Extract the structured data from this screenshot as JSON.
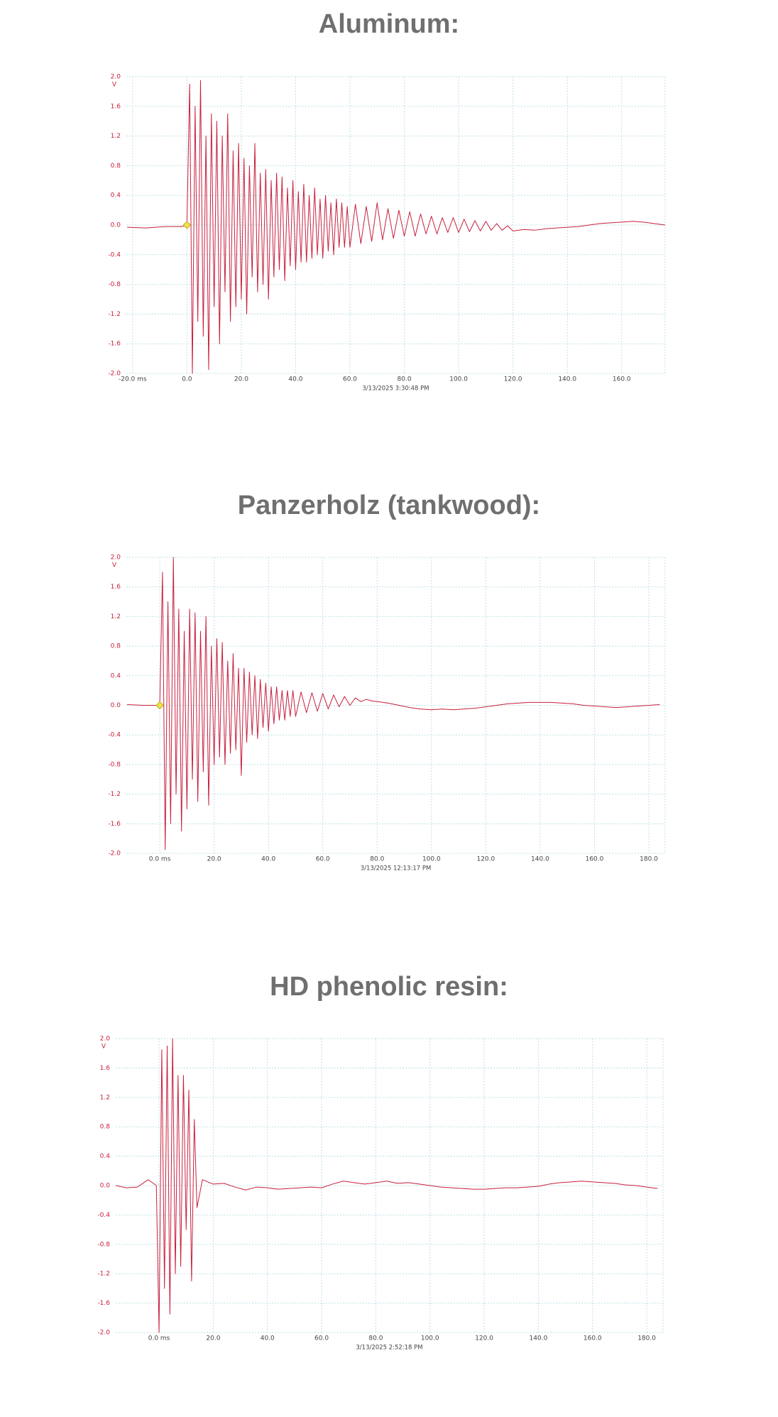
{
  "chart_data": [
    {
      "type": "line",
      "title": "Aluminum:",
      "y_unit": "V",
      "x_label": "3/13/2025 3:30:48 PM",
      "color": "#c8203c",
      "grid": true,
      "xlim": [
        -22.3,
        176
      ],
      "ylim": [
        -2,
        2
      ],
      "xticks": [
        {
          "value": -20,
          "label": "-20.0 ms"
        },
        {
          "value": 0,
          "label": "0.0"
        },
        {
          "value": 20,
          "label": "20.0"
        },
        {
          "value": 40,
          "label": "40.0"
        },
        {
          "value": 60,
          "label": "60.0"
        },
        {
          "value": 80,
          "label": "80.0"
        },
        {
          "value": 100,
          "label": "100.0"
        },
        {
          "value": 120,
          "label": "120.0"
        },
        {
          "value": 140,
          "label": "140.0"
        },
        {
          "value": 160,
          "label": "160.0"
        }
      ],
      "yticks": [
        {
          "value": 2,
          "label": "2.0"
        },
        {
          "value": 1.6,
          "label": "1.6"
        },
        {
          "value": 1.2,
          "label": "1.2"
        },
        {
          "value": 0.8,
          "label": "0.8"
        },
        {
          "value": 0.4,
          "label": "0.4"
        },
        {
          "value": 0,
          "label": "0.0"
        },
        {
          "value": -0.4,
          "label": "-0.4"
        },
        {
          "value": -0.8,
          "label": "-0.8"
        },
        {
          "value": -1.2,
          "label": "-1.2"
        },
        {
          "value": -1.6,
          "label": "-1.6"
        },
        {
          "value": -2,
          "label": "-2.0"
        }
      ],
      "trigger": {
        "x": 0,
        "y": 0
      },
      "x": [
        -22,
        -15,
        -8,
        -2,
        0,
        1,
        2,
        3,
        4,
        5,
        6,
        7,
        8,
        9,
        10,
        11,
        12,
        13,
        14,
        15,
        16,
        17,
        18,
        19,
        20,
        21,
        22,
        23,
        24,
        25,
        26,
        27,
        28,
        29,
        30,
        31,
        32,
        33,
        34,
        35,
        36,
        37,
        38,
        39,
        40,
        41,
        42,
        43,
        44,
        45,
        46,
        47,
        48,
        49,
        50,
        51,
        52,
        53,
        54,
        55,
        56,
        57,
        58,
        59,
        60,
        62,
        64,
        66,
        68,
        70,
        72,
        74,
        76,
        78,
        80,
        82,
        84,
        86,
        88,
        90,
        92,
        94,
        96,
        98,
        100,
        102,
        104,
        106,
        108,
        110,
        112,
        114,
        116,
        118,
        120,
        124,
        128,
        132,
        136,
        140,
        144,
        148,
        152,
        156,
        160,
        164,
        168,
        172,
        176
      ],
      "values": [
        -0.03,
        -0.04,
        -0.02,
        -0.02,
        0.0,
        1.9,
        -2.0,
        1.6,
        -1.3,
        1.95,
        -1.5,
        1.2,
        -1.95,
        1.5,
        -1.1,
        1.4,
        -1.6,
        1.2,
        -0.9,
        1.5,
        -1.3,
        1.0,
        -1.1,
        1.1,
        -1.0,
        0.9,
        -1.2,
        0.8,
        -0.7,
        1.1,
        -0.9,
        0.7,
        -0.8,
        0.75,
        -1.0,
        0.6,
        -0.7,
        0.7,
        -0.6,
        0.65,
        -0.75,
        0.5,
        -0.55,
        0.6,
        -0.6,
        0.45,
        -0.5,
        0.55,
        -0.5,
        0.4,
        -0.45,
        0.5,
        -0.4,
        0.35,
        -0.45,
        0.4,
        -0.35,
        0.3,
        -0.4,
        0.35,
        -0.3,
        0.3,
        -0.3,
        0.25,
        -0.3,
        0.28,
        -0.25,
        0.25,
        -0.22,
        0.3,
        -0.2,
        0.22,
        -0.18,
        0.2,
        -0.15,
        0.18,
        -0.15,
        0.15,
        -0.12,
        0.12,
        -0.12,
        0.1,
        -0.1,
        0.1,
        -0.1,
        0.08,
        -0.09,
        0.06,
        -0.08,
        0.05,
        -0.07,
        0.02,
        -0.07,
        -0.01,
        -0.08,
        -0.06,
        -0.07,
        -0.05,
        -0.04,
        -0.03,
        -0.02,
        0.0,
        0.02,
        0.03,
        0.04,
        0.05,
        0.04,
        0.02,
        0.0
      ]
    },
    {
      "type": "line",
      "title": "Panzerholz (tankwood):",
      "y_unit": "V",
      "x_label": "3/13/2025 12:13:17 PM",
      "color": "#c8203c",
      "grid": true,
      "xlim": [
        -12.3,
        186
      ],
      "ylim": [
        -2,
        2
      ],
      "xticks": [
        {
          "value": 0,
          "label": "0.0 ms"
        },
        {
          "value": 20,
          "label": "20.0"
        },
        {
          "value": 40,
          "label": "40.0"
        },
        {
          "value": 60,
          "label": "60.0"
        },
        {
          "value": 80,
          "label": "80.0"
        },
        {
          "value": 100,
          "label": "100.0"
        },
        {
          "value": 120,
          "label": "120.0"
        },
        {
          "value": 140,
          "label": "140.0"
        },
        {
          "value": 160,
          "label": "160.0"
        },
        {
          "value": 180,
          "label": "180.0"
        }
      ],
      "yticks": [
        {
          "value": 2,
          "label": "2.0"
        },
        {
          "value": 1.6,
          "label": "1.6"
        },
        {
          "value": 1.2,
          "label": "1.2"
        },
        {
          "value": 0.8,
          "label": "0.8"
        },
        {
          "value": 0.4,
          "label": "0.4"
        },
        {
          "value": 0,
          "label": "0.0"
        },
        {
          "value": -0.4,
          "label": "-0.4"
        },
        {
          "value": -0.8,
          "label": "-0.8"
        },
        {
          "value": -1.2,
          "label": "-1.2"
        },
        {
          "value": -1.6,
          "label": "-1.6"
        },
        {
          "value": -2,
          "label": "-2.0"
        }
      ],
      "trigger": {
        "x": 0,
        "y": 0
      },
      "x": [
        -12,
        -6,
        -2,
        0,
        1,
        2,
        3,
        4,
        5,
        6,
        7,
        8,
        9,
        10,
        11,
        12,
        13,
        14,
        15,
        16,
        17,
        18,
        19,
        20,
        21,
        22,
        23,
        24,
        25,
        26,
        27,
        28,
        29,
        30,
        31,
        32,
        33,
        34,
        35,
        36,
        37,
        38,
        39,
        40,
        41,
        42,
        43,
        44,
        45,
        46,
        47,
        48,
        49,
        50,
        52,
        54,
        56,
        58,
        60,
        62,
        64,
        66,
        68,
        70,
        72,
        74,
        76,
        78,
        80,
        84,
        88,
        92,
        96,
        100,
        104,
        108,
        112,
        116,
        120,
        124,
        128,
        132,
        136,
        140,
        144,
        148,
        152,
        156,
        160,
        164,
        168,
        172,
        176,
        180,
        184
      ],
      "values": [
        0.01,
        0.0,
        0.0,
        0.0,
        1.8,
        -1.95,
        1.4,
        -1.6,
        2.0,
        -1.2,
        1.3,
        -1.7,
        1.0,
        -1.4,
        1.3,
        -1.0,
        1.25,
        -1.3,
        1.0,
        -0.9,
        1.2,
        -1.35,
        0.8,
        -0.8,
        0.9,
        -0.7,
        0.85,
        -0.8,
        0.6,
        -0.65,
        0.7,
        -0.6,
        0.5,
        -0.95,
        0.5,
        -0.5,
        0.45,
        -0.4,
        0.4,
        -0.45,
        0.35,
        -0.3,
        0.3,
        -0.35,
        0.25,
        -0.25,
        0.25,
        -0.2,
        0.2,
        -0.2,
        0.2,
        -0.15,
        0.2,
        -0.15,
        0.18,
        -0.1,
        0.17,
        -0.08,
        0.16,
        -0.05,
        0.14,
        -0.02,
        0.12,
        0.0,
        0.1,
        0.05,
        0.08,
        0.06,
        0.05,
        0.03,
        0.0,
        -0.03,
        -0.05,
        -0.06,
        -0.05,
        -0.06,
        -0.05,
        -0.04,
        -0.02,
        0.0,
        0.02,
        0.03,
        0.04,
        0.04,
        0.04,
        0.03,
        0.02,
        0.0,
        -0.01,
        -0.02,
        -0.03,
        -0.02,
        -0.01,
        0.0,
        0.01
      ]
    },
    {
      "type": "line",
      "title": "HD phenolic resin:",
      "y_unit": "V",
      "x_label": "3/13/2025 2:52:18 PM",
      "color": "#c8203c",
      "grid": true,
      "xlim": [
        -16,
        186
      ],
      "ylim": [
        -2,
        2
      ],
      "xticks": [
        {
          "value": 0,
          "label": "0.0 ms"
        },
        {
          "value": 20,
          "label": "20.0"
        },
        {
          "value": 40,
          "label": "40.0"
        },
        {
          "value": 60,
          "label": "60.0"
        },
        {
          "value": 80,
          "label": "80.0"
        },
        {
          "value": 100,
          "label": "100.0"
        },
        {
          "value": 120,
          "label": "120.0"
        },
        {
          "value": 140,
          "label": "140.0"
        },
        {
          "value": 160,
          "label": "160.0"
        },
        {
          "value": 180,
          "label": "180.0"
        }
      ],
      "yticks": [
        {
          "value": 2,
          "label": "2.0"
        },
        {
          "value": 1.6,
          "label": "1.6"
        },
        {
          "value": 1.2,
          "label": "1.2"
        },
        {
          "value": 0.8,
          "label": "0.8"
        },
        {
          "value": 0.4,
          "label": "0.4"
        },
        {
          "value": 0,
          "label": "0.0"
        },
        {
          "value": -0.4,
          "label": "-0.4"
        },
        {
          "value": -0.8,
          "label": "-0.8"
        },
        {
          "value": -1.2,
          "label": "-1.2"
        },
        {
          "value": -1.6,
          "label": "-1.6"
        },
        {
          "value": -2,
          "label": "-2.0"
        }
      ],
      "x": [
        -16,
        -12,
        -8,
        -4,
        -1,
        0,
        1,
        2,
        3,
        4,
        5,
        6,
        7,
        8,
        9,
        10,
        11,
        12,
        13,
        14,
        16,
        20,
        24,
        28,
        32,
        36,
        40,
        44,
        48,
        52,
        56,
        60,
        64,
        68,
        72,
        76,
        80,
        84,
        88,
        92,
        96,
        100,
        104,
        108,
        112,
        116,
        120,
        124,
        128,
        132,
        136,
        140,
        144,
        148,
        152,
        156,
        160,
        164,
        168,
        172,
        176,
        180,
        184
      ],
      "values": [
        0.0,
        -0.03,
        -0.02,
        0.08,
        0.0,
        -2.0,
        1.85,
        -1.4,
        1.9,
        -1.75,
        2.0,
        -1.2,
        1.5,
        -1.1,
        1.5,
        -0.6,
        1.3,
        -1.3,
        0.9,
        -0.3,
        0.08,
        0.02,
        0.03,
        -0.02,
        -0.06,
        -0.02,
        -0.03,
        -0.05,
        -0.04,
        -0.03,
        -0.02,
        -0.03,
        0.02,
        0.06,
        0.04,
        0.02,
        0.04,
        0.06,
        0.03,
        0.04,
        0.02,
        0.0,
        -0.02,
        -0.03,
        -0.04,
        -0.05,
        -0.05,
        -0.04,
        -0.03,
        -0.03,
        -0.02,
        -0.01,
        0.02,
        0.04,
        0.05,
        0.06,
        0.05,
        0.04,
        0.03,
        0.01,
        0.0,
        -0.02,
        -0.04
      ]
    }
  ]
}
